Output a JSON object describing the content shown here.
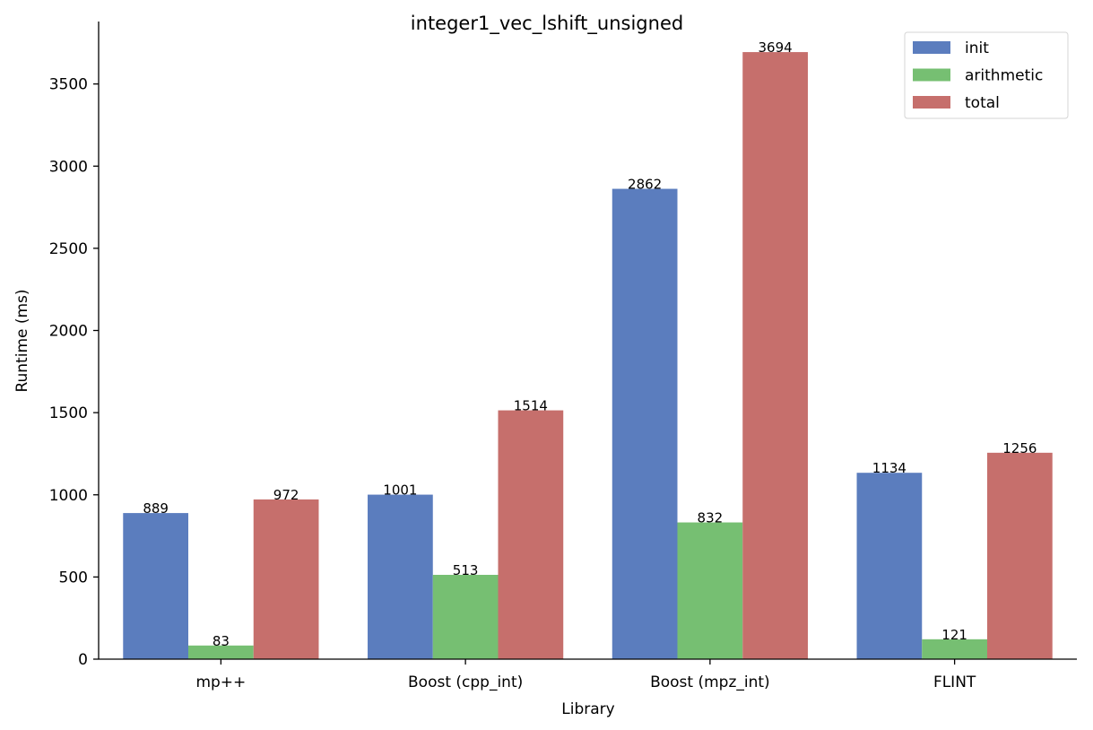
{
  "chart_data": {
    "type": "bar",
    "title": "integer1_vec_lshift_unsigned",
    "xlabel": "Library",
    "ylabel": "Runtime (ms)",
    "categories": [
      "mp++",
      "Boost (cpp_int)",
      "Boost (mpz_int)",
      "FLINT"
    ],
    "series": [
      {
        "name": "init",
        "values": [
          889,
          1001,
          2862,
          1134
        ],
        "color": "#5b7dbe"
      },
      {
        "name": "arithmetic",
        "values": [
          83,
          513,
          832,
          121
        ],
        "color": "#76bf72"
      },
      {
        "name": "total",
        "values": [
          972,
          1514,
          3694,
          1256
        ],
        "color": "#c66f6c"
      }
    ],
    "ylim": [
      0,
      3880
    ],
    "yticks": [
      0,
      500,
      1000,
      1500,
      2000,
      2500,
      3000,
      3500
    ],
    "grid": false,
    "legend_position": "top-right"
  }
}
